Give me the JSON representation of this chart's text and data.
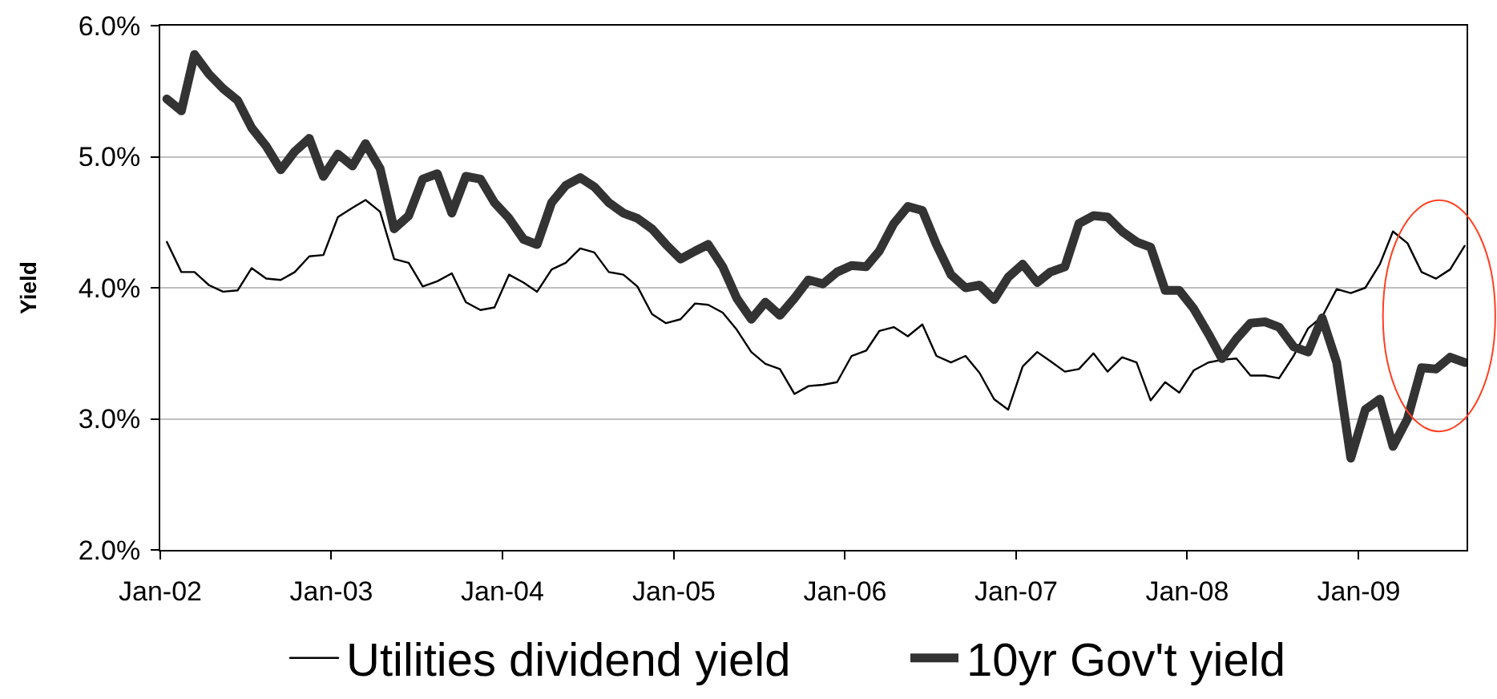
{
  "chart_data": {
    "type": "line",
    "x": [
      "2002-01-15",
      "2002-02-15",
      "2002-03-15",
      "2002-04-15",
      "2002-05-15",
      "2002-06-15",
      "2002-07-15",
      "2002-08-15",
      "2002-09-15",
      "2002-10-15",
      "2002-11-15",
      "2002-12-15",
      "2003-01-15",
      "2003-02-15",
      "2003-03-15",
      "2003-04-15",
      "2003-05-15",
      "2003-06-15",
      "2003-07-15",
      "2003-08-15",
      "2003-09-15",
      "2003-10-15",
      "2003-11-15",
      "2003-12-15",
      "2004-01-15",
      "2004-02-15",
      "2004-03-15",
      "2004-04-15",
      "2004-05-15",
      "2004-06-15",
      "2004-07-15",
      "2004-08-15",
      "2004-09-15",
      "2004-10-15",
      "2004-11-15",
      "2004-12-15",
      "2005-01-15",
      "2005-02-15",
      "2005-03-15",
      "2005-04-15",
      "2005-05-15",
      "2005-06-15",
      "2005-07-15",
      "2005-08-15",
      "2005-09-15",
      "2005-10-15",
      "2005-11-15",
      "2005-12-15",
      "2006-01-15",
      "2006-02-15",
      "2006-03-15",
      "2006-04-15",
      "2006-05-15",
      "2006-06-15",
      "2006-07-15",
      "2006-08-15",
      "2006-09-15",
      "2006-10-15",
      "2006-11-15",
      "2006-12-15",
      "2007-01-15",
      "2007-02-15",
      "2007-03-15",
      "2007-04-15",
      "2007-05-15",
      "2007-06-15",
      "2007-07-15",
      "2007-08-15",
      "2007-09-15",
      "2007-10-15",
      "2007-11-15",
      "2007-12-15",
      "2008-01-15",
      "2008-02-15",
      "2008-03-15",
      "2008-04-15",
      "2008-05-15",
      "2008-06-15",
      "2008-07-15",
      "2008-08-15",
      "2008-09-15",
      "2008-10-15",
      "2008-11-15",
      "2008-12-15",
      "2009-01-15",
      "2009-02-15",
      "2009-03-15",
      "2009-04-15",
      "2009-05-15",
      "2009-06-15",
      "2009-07-15",
      "2009-08-15"
    ],
    "series": [
      {
        "name": "Utilities dividend yield",
        "color": "#000000",
        "values": [
          4.35,
          4.12,
          4.12,
          4.02,
          3.97,
          3.98,
          4.15,
          4.07,
          4.06,
          4.12,
          4.24,
          4.25,
          4.54,
          4.61,
          4.67,
          4.58,
          4.22,
          4.19,
          4.01,
          4.05,
          4.11,
          3.89,
          3.83,
          3.85,
          4.1,
          4.04,
          3.97,
          4.14,
          4.19,
          4.3,
          4.27,
          4.12,
          4.1,
          4.01,
          3.8,
          3.73,
          3.76,
          3.88,
          3.87,
          3.81,
          3.68,
          3.51,
          3.42,
          3.38,
          3.19,
          3.25,
          3.26,
          3.28,
          3.48,
          3.52,
          3.67,
          3.7,
          3.63,
          3.72,
          3.48,
          3.43,
          3.48,
          3.35,
          3.15,
          3.07,
          3.4,
          3.51,
          3.44,
          3.36,
          3.38,
          3.5,
          3.36,
          3.47,
          3.43,
          3.14,
          3.28,
          3.2,
          3.37,
          3.43,
          3.45,
          3.46,
          3.33,
          3.33,
          3.31,
          3.48,
          3.69,
          3.78,
          3.99,
          3.96,
          4.0,
          4.18,
          4.43,
          4.34,
          4.12,
          4.07,
          4.14,
          4.32
        ]
      },
      {
        "name": "10yr Gov't yield",
        "color": "#333333",
        "values": [
          5.44,
          5.35,
          5.78,
          5.63,
          5.52,
          5.43,
          5.22,
          5.08,
          4.9,
          5.04,
          5.14,
          4.85,
          5.02,
          4.93,
          5.1,
          4.91,
          4.45,
          4.55,
          4.83,
          4.87,
          4.57,
          4.85,
          4.83,
          4.65,
          4.53,
          4.37,
          4.33,
          4.65,
          4.78,
          4.84,
          4.77,
          4.65,
          4.57,
          4.53,
          4.45,
          4.33,
          4.22,
          4.28,
          4.33,
          4.16,
          3.92,
          3.76,
          3.89,
          3.79,
          3.92,
          4.06,
          4.03,
          4.12,
          4.17,
          4.16,
          4.28,
          4.49,
          4.62,
          4.59,
          4.33,
          4.1,
          4.0,
          4.02,
          3.91,
          4.08,
          4.18,
          4.04,
          4.12,
          4.16,
          4.49,
          4.55,
          4.54,
          4.43,
          4.35,
          4.31,
          3.98,
          3.98,
          3.84,
          3.65,
          3.46,
          3.61,
          3.73,
          3.74,
          3.7,
          3.55,
          3.51,
          3.77,
          3.43,
          2.7,
          3.07,
          3.15,
          2.79,
          3.0,
          3.39,
          3.38,
          3.47,
          3.43
        ]
      }
    ],
    "ylabel": "Yield",
    "xlim": [
      "2002-01-01",
      "2009-08-19"
    ],
    "xticks": [
      {
        "value": "2002-01",
        "label": "Jan-02"
      },
      {
        "value": "2003-01",
        "label": "Jan-03"
      },
      {
        "value": "2004-01",
        "label": "Jan-04"
      },
      {
        "value": "2005-01",
        "label": "Jan-05"
      },
      {
        "value": "2006-01",
        "label": "Jan-06"
      },
      {
        "value": "2007-01",
        "label": "Jan-07"
      },
      {
        "value": "2008-01",
        "label": "Jan-08"
      },
      {
        "value": "2009-01",
        "label": "Jan-09"
      }
    ],
    "ylim": [
      2,
      6
    ],
    "yticks": [
      {
        "value": 2,
        "label": "2.0%"
      },
      {
        "value": 3,
        "label": "3.0%"
      },
      {
        "value": 4,
        "label": "4.0%"
      },
      {
        "value": 5,
        "label": "5.0%"
      },
      {
        "value": 6,
        "label": "6.0%"
      }
    ],
    "grid": "y",
    "legend": "bottom",
    "marker": "none",
    "line_style": "solid"
  }
}
